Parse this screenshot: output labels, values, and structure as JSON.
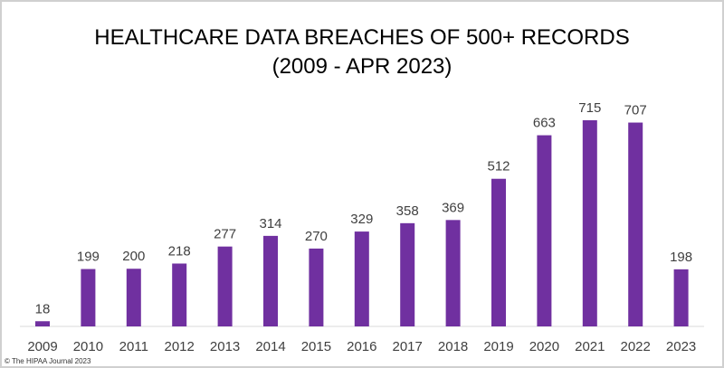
{
  "chart_data": {
    "type": "bar",
    "title": "HEALTHCARE DATA BREACHES OF 500+ RECORDS",
    "subtitle": "(2009 - APR 2023)",
    "categories": [
      "2009",
      "2010",
      "2011",
      "2012",
      "2013",
      "2014",
      "2015",
      "2016",
      "2017",
      "2018",
      "2019",
      "2020",
      "2021",
      "2022",
      "2023"
    ],
    "values": [
      18,
      199,
      200,
      218,
      277,
      314,
      270,
      329,
      358,
      369,
      512,
      663,
      715,
      707,
      198
    ],
    "xlabel": "",
    "ylabel": "",
    "ylim": [
      0,
      715
    ],
    "grid": false,
    "data_labels": true,
    "bar_color": "#7030a0"
  },
  "copyright": "© The HIPAA Journal 2023"
}
